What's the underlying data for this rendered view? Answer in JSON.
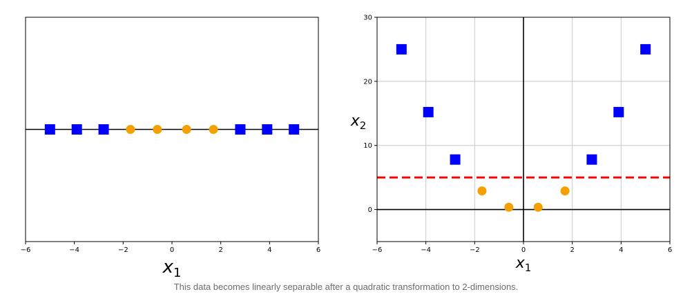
{
  "chart_data": [
    {
      "type": "scatter",
      "title": "",
      "xlabel": "x_1",
      "ylabel": "",
      "xlim": [
        -6,
        6
      ],
      "xticks": [
        -6,
        -4,
        -2,
        0,
        2,
        4,
        6
      ],
      "grid": false,
      "horizontal_line": 0,
      "series": [
        {
          "marker": "square",
          "color": "#0000ff",
          "x": [
            -5,
            -3.9,
            -2.8,
            2.8,
            3.9,
            5
          ]
        },
        {
          "marker": "circle",
          "color": "#f5a000",
          "x": [
            -1.7,
            -0.6,
            0.6,
            1.7
          ]
        }
      ]
    },
    {
      "type": "scatter",
      "title": "",
      "xlabel": "x_1",
      "ylabel": "x_2",
      "xlim": [
        -6,
        6
      ],
      "ylim": [
        -5,
        30
      ],
      "xticks": [
        -6,
        -4,
        -2,
        0,
        2,
        4,
        6
      ],
      "yticks": [
        0,
        10,
        20,
        30
      ],
      "grid": true,
      "axis_lines": {
        "x": 0,
        "y": 0
      },
      "threshold_line": {
        "y": 5,
        "style": "dashed",
        "color": "#ff0000"
      },
      "series": [
        {
          "marker": "square",
          "color": "#0000ff",
          "x": [
            -5,
            -3.9,
            -2.8,
            2.8,
            3.9,
            5
          ],
          "y": [
            25,
            15.2,
            7.8,
            7.8,
            15.2,
            25
          ]
        },
        {
          "marker": "circle",
          "color": "#f5a000",
          "x": [
            -1.7,
            -0.6,
            0.6,
            1.7
          ],
          "y": [
            2.9,
            0.36,
            0.36,
            2.9
          ]
        }
      ]
    }
  ],
  "caption": "This data becomes linearly separable after a quadratic transformation to 2-dimensions."
}
